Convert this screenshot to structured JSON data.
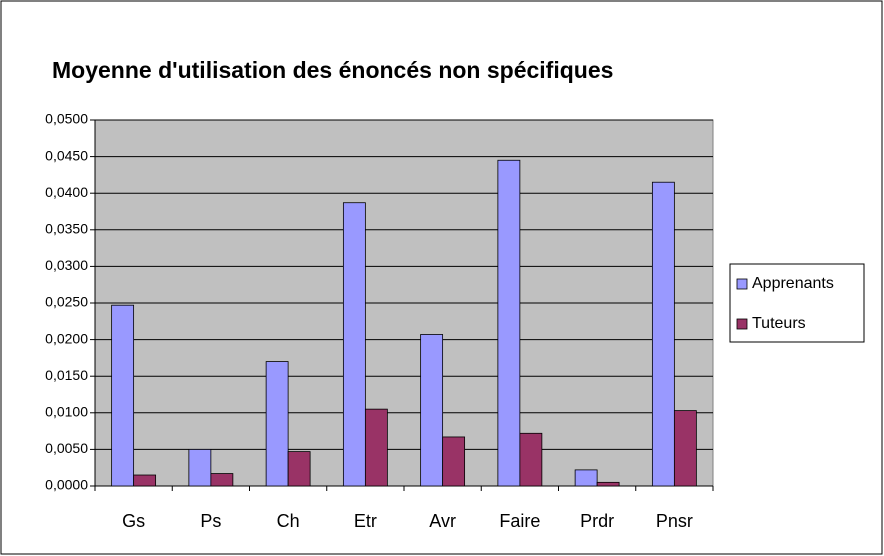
{
  "chart_data": {
    "type": "bar",
    "title": "Moyenne d'utilisation des énoncés non spécifiques",
    "categories": [
      "Gs",
      "Ps",
      "Ch",
      "Etr",
      "Avr",
      "Faire",
      "Prdr",
      "Pnsr"
    ],
    "series": [
      {
        "name": "Apprenants",
        "color": "#9999ff",
        "values": [
          0.0247,
          0.005,
          0.017,
          0.0387,
          0.0207,
          0.0445,
          0.0022,
          0.0415
        ]
      },
      {
        "name": "Tuteurs",
        "color": "#993366",
        "values": [
          0.0015,
          0.0017,
          0.0047,
          0.0105,
          0.0067,
          0.0072,
          0.0005,
          0.0103
        ]
      }
    ],
    "ylim": [
      0,
      0.05
    ],
    "yticks": [
      {
        "value": 0,
        "label": "0,0000"
      },
      {
        "value": 0.005,
        "label": "0,0050"
      },
      {
        "value": 0.01,
        "label": "0,0100"
      },
      {
        "value": 0.015,
        "label": "0,0150"
      },
      {
        "value": 0.02,
        "label": "0,0200"
      },
      {
        "value": 0.025,
        "label": "0,0250"
      },
      {
        "value": 0.03,
        "label": "0,0300"
      },
      {
        "value": 0.035,
        "label": "0,0350"
      },
      {
        "value": 0.04,
        "label": "0,0400"
      },
      {
        "value": 0.045,
        "label": "0,0450"
      },
      {
        "value": 0.05,
        "label": "0,0500"
      }
    ],
    "grid": true,
    "legend": "right",
    "plot_background": "#c0c0c0"
  }
}
